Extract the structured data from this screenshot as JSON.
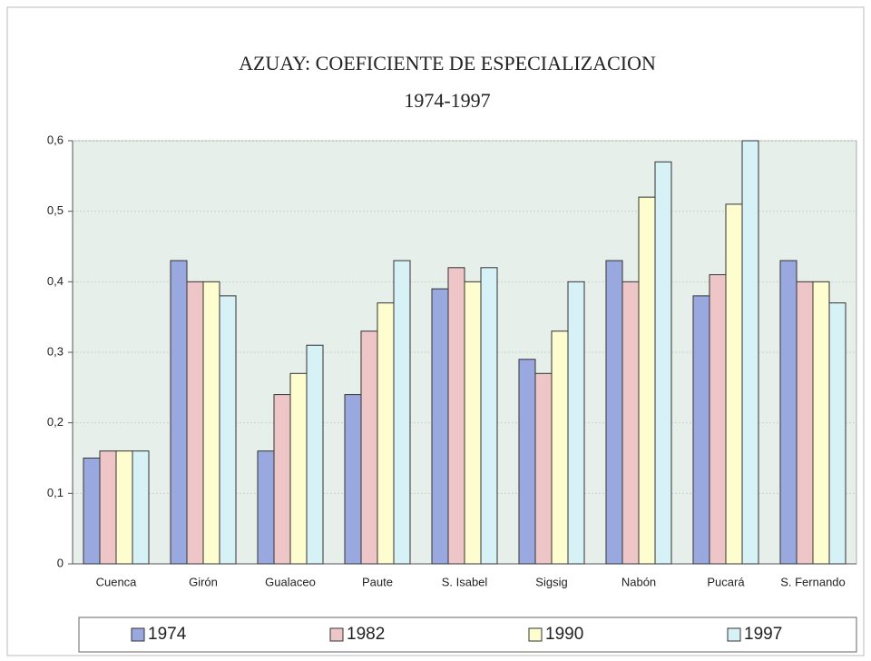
{
  "chart_data": {
    "type": "bar",
    "title": "AZUAY: COEFICIENTE DE ESPECIALIZACION",
    "subtitle": "1974-1997",
    "categories": [
      "Cuenca",
      "Girón",
      "Gualaceo",
      "Paute",
      "S. Isabel",
      "Sigsig",
      "Nabón",
      "Pucará",
      "S. Fernando"
    ],
    "series": [
      {
        "name": "1974",
        "color": "#9aa8e0",
        "values": [
          0.15,
          0.43,
          0.16,
          0.24,
          0.39,
          0.29,
          0.43,
          0.38,
          0.43
        ]
      },
      {
        "name": "1982",
        "color": "#efc6c8",
        "values": [
          0.16,
          0.4,
          0.24,
          0.33,
          0.42,
          0.27,
          0.4,
          0.41,
          0.4
        ]
      },
      {
        "name": "1990",
        "color": "#fdfdcf",
        "values": [
          0.16,
          0.4,
          0.27,
          0.37,
          0.4,
          0.33,
          0.52,
          0.51,
          0.4
        ]
      },
      {
        "name": "1997",
        "color": "#d6f2f6",
        "values": [
          0.16,
          0.38,
          0.31,
          0.43,
          0.42,
          0.4,
          0.57,
          0.6,
          0.37
        ]
      }
    ],
    "ylim": [
      0,
      0.6
    ],
    "yticks": [
      0,
      {
        "value": 0.1,
        "label": "0,1"
      },
      {
        "value": 0.2,
        "label": "0,2"
      },
      {
        "value": 0.3,
        "label": "0,3"
      },
      {
        "value": 0.4,
        "label": "0,4"
      },
      {
        "value": 0.5,
        "label": "0,5"
      },
      {
        "value": 0.6,
        "label": "0,6"
      }
    ],
    "legend": "bottom"
  }
}
